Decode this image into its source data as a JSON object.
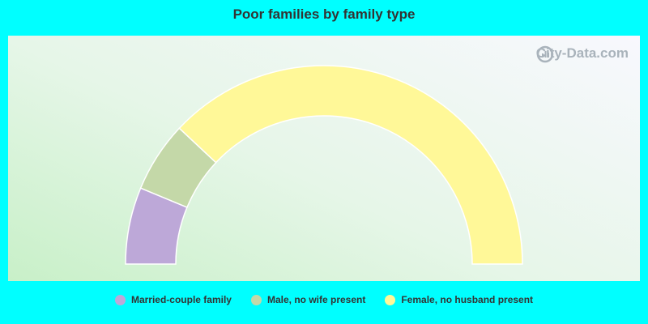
{
  "chart_data": {
    "type": "pie",
    "subtype": "semi-donut",
    "title": "Poor families by family type",
    "categories": [
      "Married-couple family",
      "Male, no wife present",
      "Female, no husband present"
    ],
    "values": [
      12.5,
      11.5,
      76.0
    ],
    "colors": [
      "#bda8d8",
      "#c4d8a8",
      "#fff898"
    ],
    "legend_position": "bottom"
  },
  "watermark": {
    "text": "City-Data.com",
    "icon": "city-data-logo-icon"
  }
}
